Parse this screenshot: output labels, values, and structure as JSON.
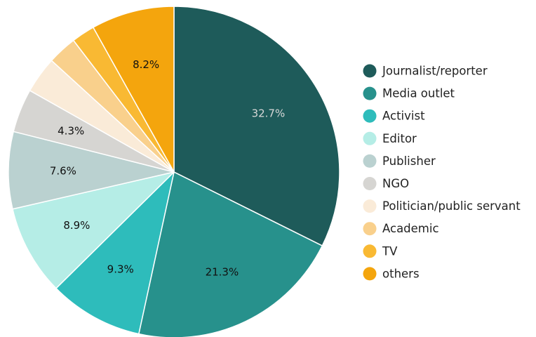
{
  "chart_data": {
    "type": "pie",
    "title": "",
    "start_angle_deg": 0,
    "direction": "clockwise",
    "legend_position": "right",
    "slices": [
      {
        "label": "Journalist/reporter",
        "value": 32.7,
        "display": "32.7%",
        "color": "#1e5b5a",
        "label_color": "#d8d8d8"
      },
      {
        "label": "Media outlet",
        "value": 21.3,
        "display": "21.3%",
        "color": "#27918c",
        "label_color": "#111111"
      },
      {
        "label": "Activist",
        "value": 9.3,
        "display": "9.3%",
        "color": "#2ebcbb",
        "label_color": "#111111"
      },
      {
        "label": "Editor",
        "value": 8.9,
        "display": "8.9%",
        "color": "#b5ede6",
        "label_color": "#111111"
      },
      {
        "label": "Publisher",
        "value": 7.6,
        "display": "7.6%",
        "color": "#bad1d0",
        "label_color": "#111111"
      },
      {
        "label": "NGO",
        "value": 4.3,
        "display": "4.3%",
        "color": "#d6d5d2",
        "label_color": "#111111"
      },
      {
        "label": "Politician/public servant",
        "value": 3.6,
        "display": "",
        "color": "#faebd8",
        "label_color": "#111111"
      },
      {
        "label": "Academic",
        "value": 2.9,
        "display": "",
        "color": "#f9d08c",
        "label_color": "#111111"
      },
      {
        "label": "TV",
        "value": 2.3,
        "display": "",
        "color": "#f9b933",
        "label_color": "#111111"
      },
      {
        "label": "others",
        "value": 8.2,
        "display": "8.2%",
        "color": "#f4a50d",
        "label_color": "#111111"
      }
    ]
  }
}
